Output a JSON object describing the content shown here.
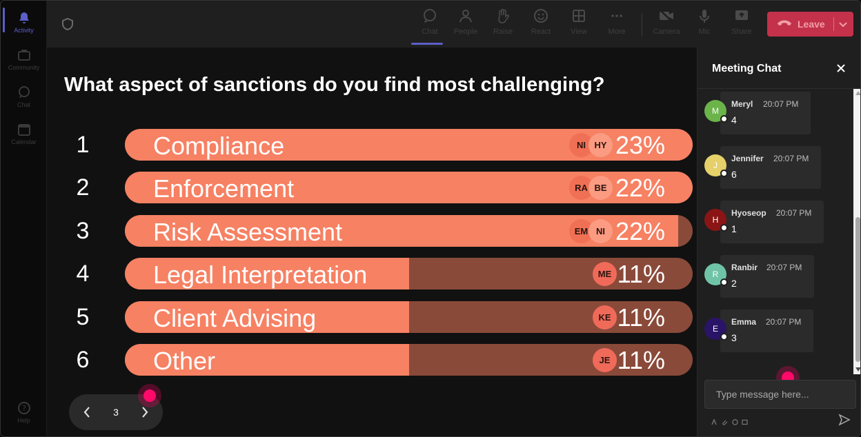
{
  "rail": {
    "items": [
      {
        "label": "Activity",
        "icon": "bell-icon"
      },
      {
        "label": "Community",
        "icon": "community-icon"
      },
      {
        "label": "Chat",
        "icon": "chat-bubble-icon"
      },
      {
        "label": "Calendar",
        "icon": "calendar-icon"
      }
    ],
    "help_label": "Help"
  },
  "toolbar": {
    "buttons": [
      {
        "label": "Chat",
        "icon": "chat-icon"
      },
      {
        "label": "People",
        "icon": "people-icon"
      },
      {
        "label": "Raise",
        "icon": "hand-icon"
      },
      {
        "label": "React",
        "icon": "smiley-icon"
      },
      {
        "label": "View",
        "icon": "grid-icon"
      },
      {
        "label": "More",
        "icon": "ellipsis-icon"
      },
      {
        "label": "Camera",
        "icon": "camera-off-icon"
      },
      {
        "label": "Mic",
        "icon": "mic-icon"
      },
      {
        "label": "Share",
        "icon": "share-icon"
      }
    ],
    "leave_label": "Leave"
  },
  "poll": {
    "question": "What aspect of sanctions do you find most challenging?",
    "options": [
      {
        "num": "1",
        "label": "Compliance",
        "percent": "23%",
        "fill": 1.0,
        "avatars": [
          "NI",
          "HY"
        ]
      },
      {
        "num": "2",
        "label": "Enforcement",
        "percent": "22%",
        "fill": 1.0,
        "avatars": [
          "RA",
          "BE"
        ]
      },
      {
        "num": "3",
        "label": "Risk Assessment",
        "percent": "22%",
        "fill": 0.975,
        "avatars": [
          "EM",
          "NI"
        ]
      },
      {
        "num": "4",
        "label": "Legal Interpretation",
        "percent": "11%",
        "fill": 0.5,
        "avatars": [
          "ME"
        ]
      },
      {
        "num": "5",
        "label": "Client Advising",
        "percent": "11%",
        "fill": 0.5,
        "avatars": [
          "KE"
        ]
      },
      {
        "num": "6",
        "label": "Other",
        "percent": "11%",
        "fill": 0.5,
        "avatars": [
          "JE"
        ]
      }
    ],
    "page": "3"
  },
  "chat": {
    "title": "Meeting Chat",
    "messages": [
      {
        "initial": "M",
        "name": "Meryl",
        "time": "20:07 PM",
        "text": "4",
        "color": "#6bb44a"
      },
      {
        "initial": "J",
        "name": "Jennifer",
        "time": "20:07 PM",
        "text": "6",
        "color": "#e6d06a"
      },
      {
        "initial": "H",
        "name": "Hyoseop",
        "time": "20:07 PM",
        "text": "1",
        "color": "#8b1515"
      },
      {
        "initial": "R",
        "name": "Ranbir",
        "time": "20:07 PM",
        "text": "2",
        "color": "#6fc4a8"
      },
      {
        "initial": "E",
        "name": "Emma",
        "time": "20:07 PM",
        "text": "3",
        "color": "#2a1468"
      }
    ],
    "placeholder": "Type message here..."
  },
  "colors": {
    "accent": "#5b5fc7",
    "bar_fill": "#f68163",
    "bar_track": "#8a4a3a",
    "leave": "#c4314b"
  }
}
